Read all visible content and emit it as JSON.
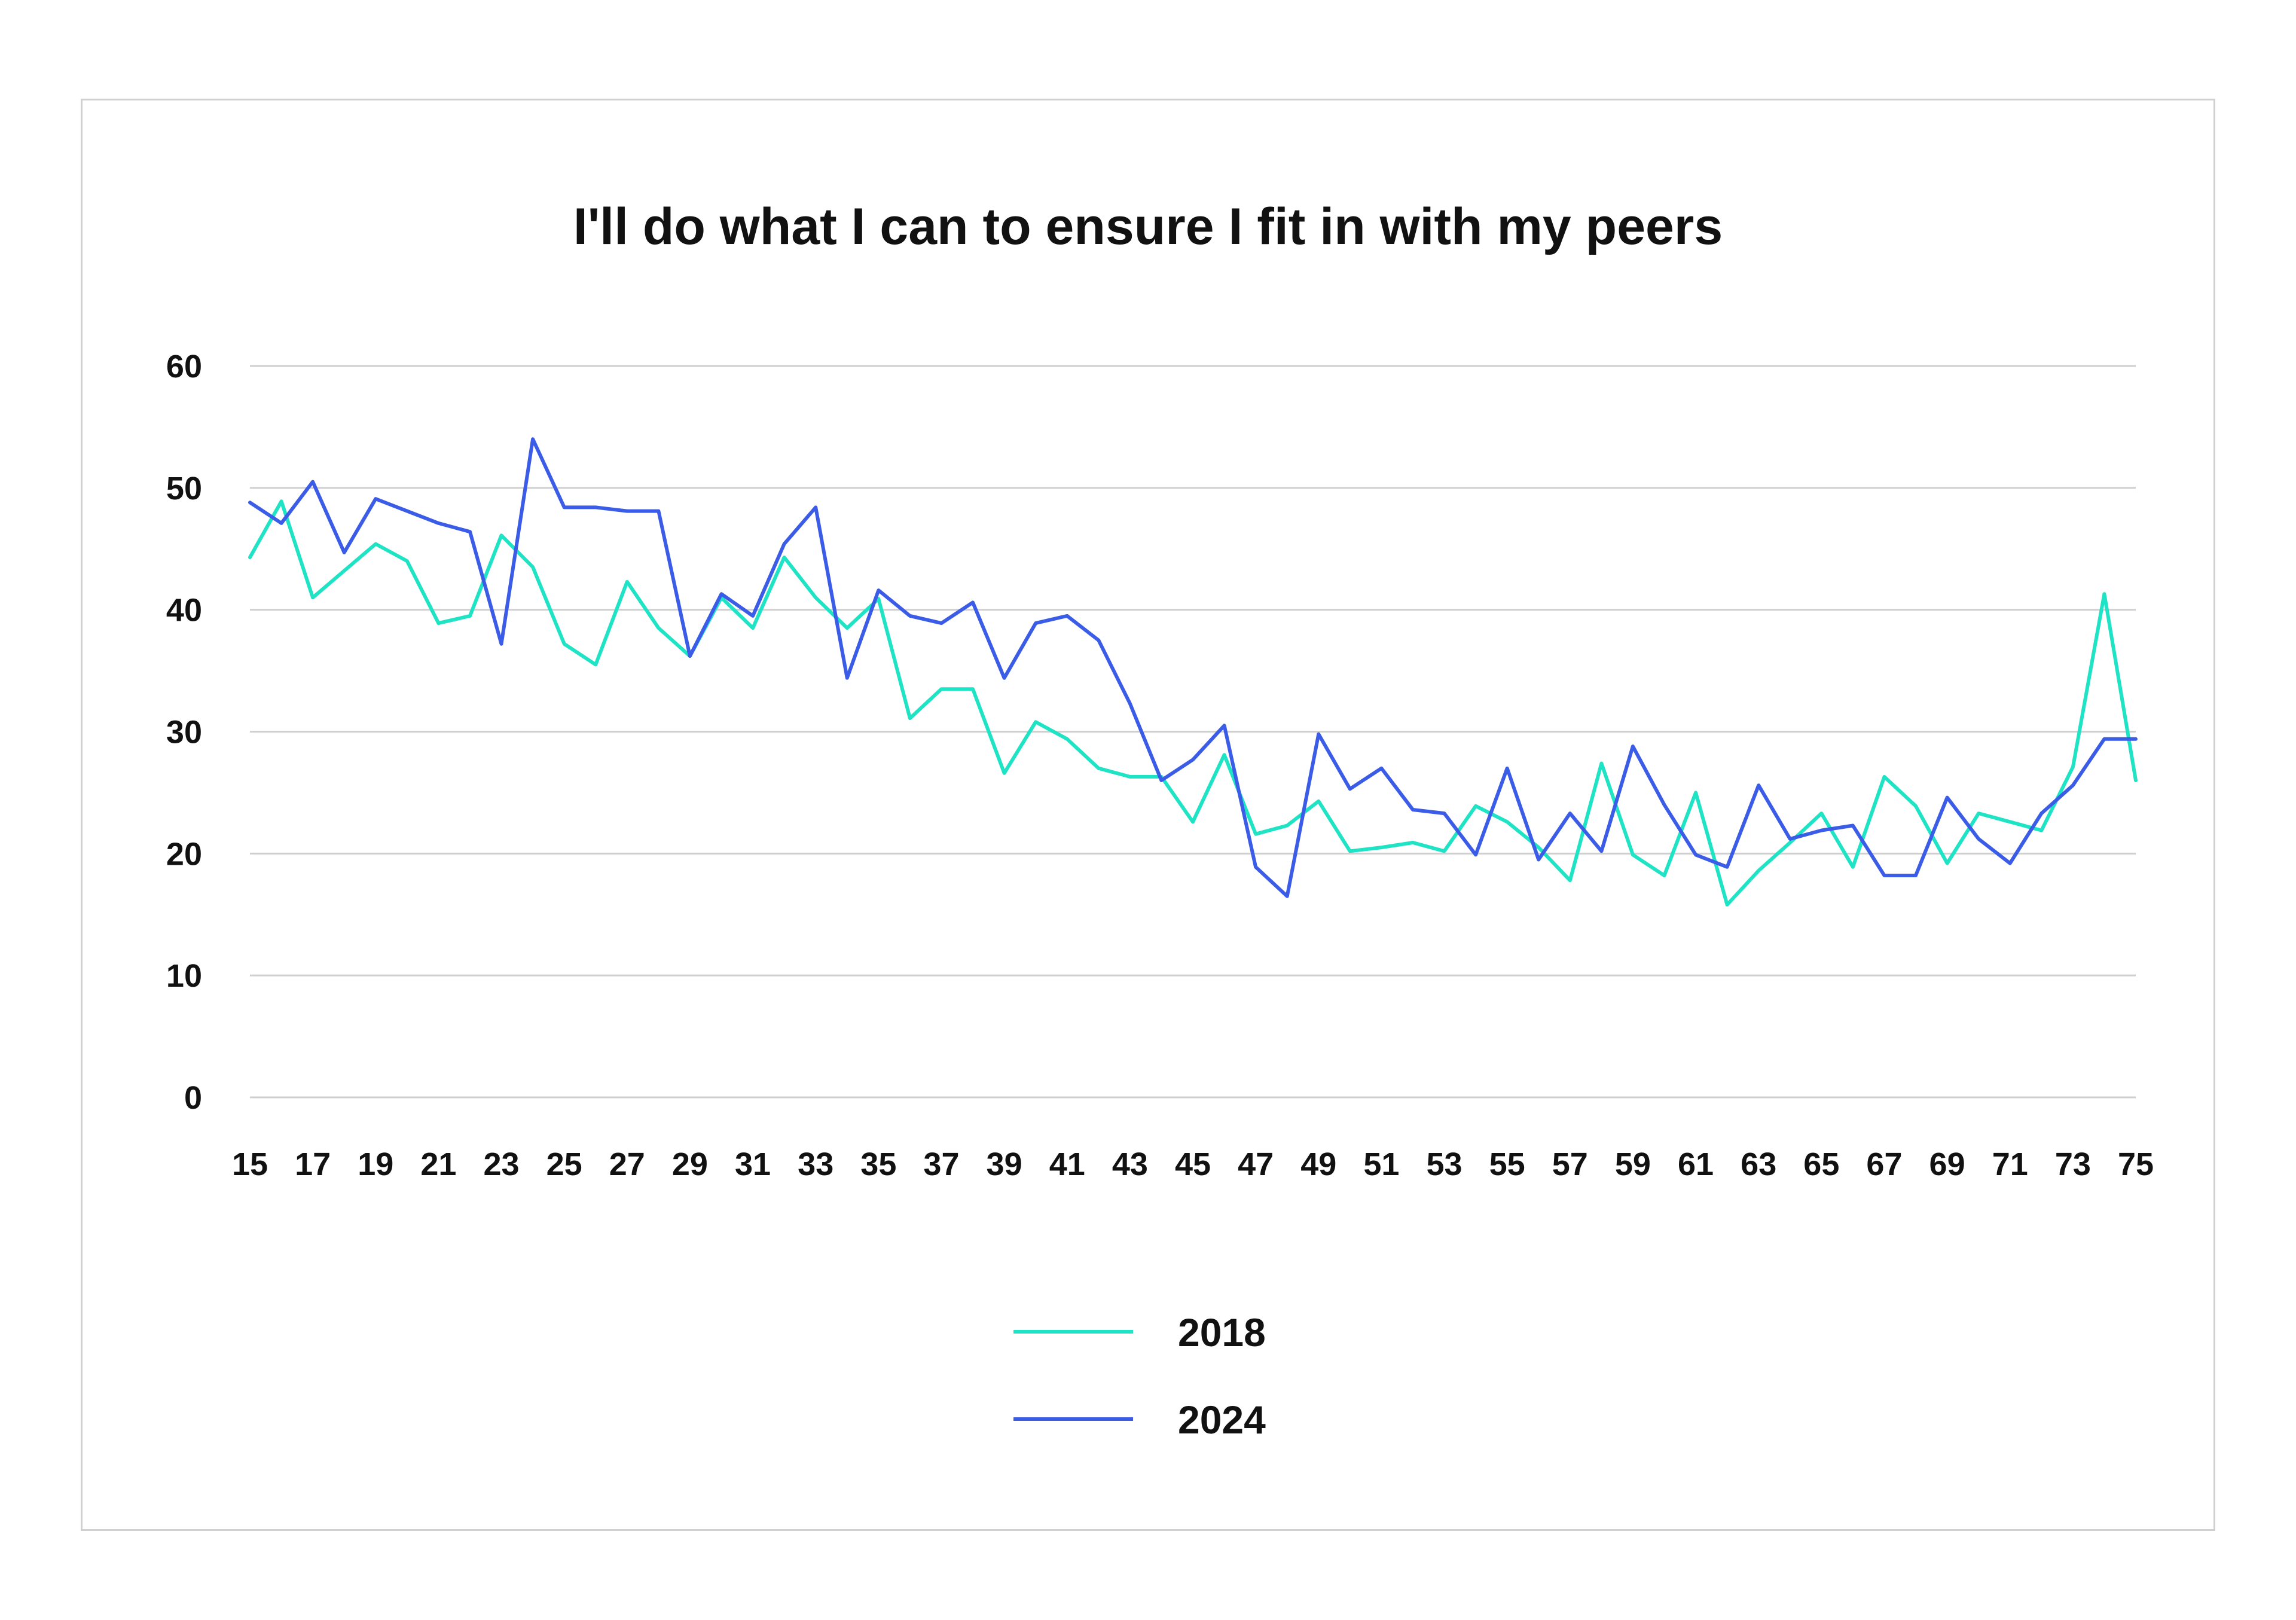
{
  "chart_data": {
    "type": "line",
    "title": "I'll do what I can to ensure I fit in with my peers",
    "xlabel": "",
    "ylabel": "",
    "x": [
      15,
      16,
      17,
      18,
      19,
      20,
      21,
      22,
      23,
      24,
      25,
      26,
      27,
      28,
      29,
      30,
      31,
      32,
      33,
      34,
      35,
      36,
      37,
      38,
      39,
      40,
      41,
      42,
      43,
      44,
      45,
      46,
      47,
      48,
      49,
      50,
      51,
      52,
      53,
      54,
      55,
      56,
      57,
      58,
      59,
      60,
      61,
      62,
      63,
      64,
      65,
      66,
      67,
      68,
      69,
      70,
      71,
      72,
      73,
      74,
      75
    ],
    "x_tick_labels": [
      "15",
      "17",
      "19",
      "21",
      "23",
      "25",
      "27",
      "29",
      "31",
      "33",
      "35",
      "37",
      "39",
      "41",
      "43",
      "45",
      "47",
      "49",
      "51",
      "53",
      "55",
      "57",
      "59",
      "61",
      "63",
      "65",
      "67",
      "69",
      "71",
      "73",
      "75"
    ],
    "y_ticks": [
      "0",
      "10",
      "20",
      "30",
      "40",
      "50",
      "60"
    ],
    "ylim": [
      0,
      60
    ],
    "grid": true,
    "legend_position": "bottom-center",
    "series": [
      {
        "name": "2018",
        "color": "#1ee3c4",
        "values": [
          44.3,
          48.9,
          41.0,
          43.2,
          45.4,
          44.0,
          38.9,
          39.5,
          46.1,
          43.5,
          37.2,
          35.5,
          42.3,
          38.5,
          36.2,
          41.0,
          38.5,
          44.3,
          41.0,
          38.5,
          40.9,
          31.1,
          33.5,
          33.5,
          26.6,
          30.8,
          29.4,
          27.0,
          26.3,
          26.3,
          22.6,
          28.1,
          21.6,
          22.3,
          24.3,
          20.2,
          20.5,
          20.9,
          20.2,
          23.9,
          22.6,
          20.5,
          17.8,
          27.4,
          19.9,
          18.2,
          25.0,
          15.8,
          18.6,
          20.9,
          23.3,
          18.9,
          26.3,
          23.9,
          19.2,
          23.3,
          22.6,
          21.9,
          27.1,
          41.3,
          26.0
        ]
      },
      {
        "name": "2024",
        "color": "#3b5ce6",
        "values": [
          48.8,
          47.1,
          50.5,
          44.7,
          49.1,
          48.1,
          47.1,
          46.4,
          37.2,
          54.0,
          48.4,
          48.4,
          48.1,
          48.1,
          36.2,
          41.3,
          39.5,
          45.4,
          48.4,
          34.4,
          41.6,
          39.5,
          38.9,
          40.6,
          34.4,
          38.9,
          39.5,
          37.5,
          32.3,
          26.0,
          27.7,
          30.5,
          18.9,
          16.5,
          29.8,
          25.3,
          27.0,
          23.6,
          23.3,
          19.9,
          27.0,
          19.5,
          23.3,
          20.2,
          28.8,
          24.0,
          19.9,
          18.9,
          25.6,
          21.2,
          21.9,
          22.3,
          18.2,
          18.2,
          24.6,
          21.2,
          19.2,
          23.3,
          25.6,
          29.4,
          29.4
        ]
      }
    ]
  }
}
